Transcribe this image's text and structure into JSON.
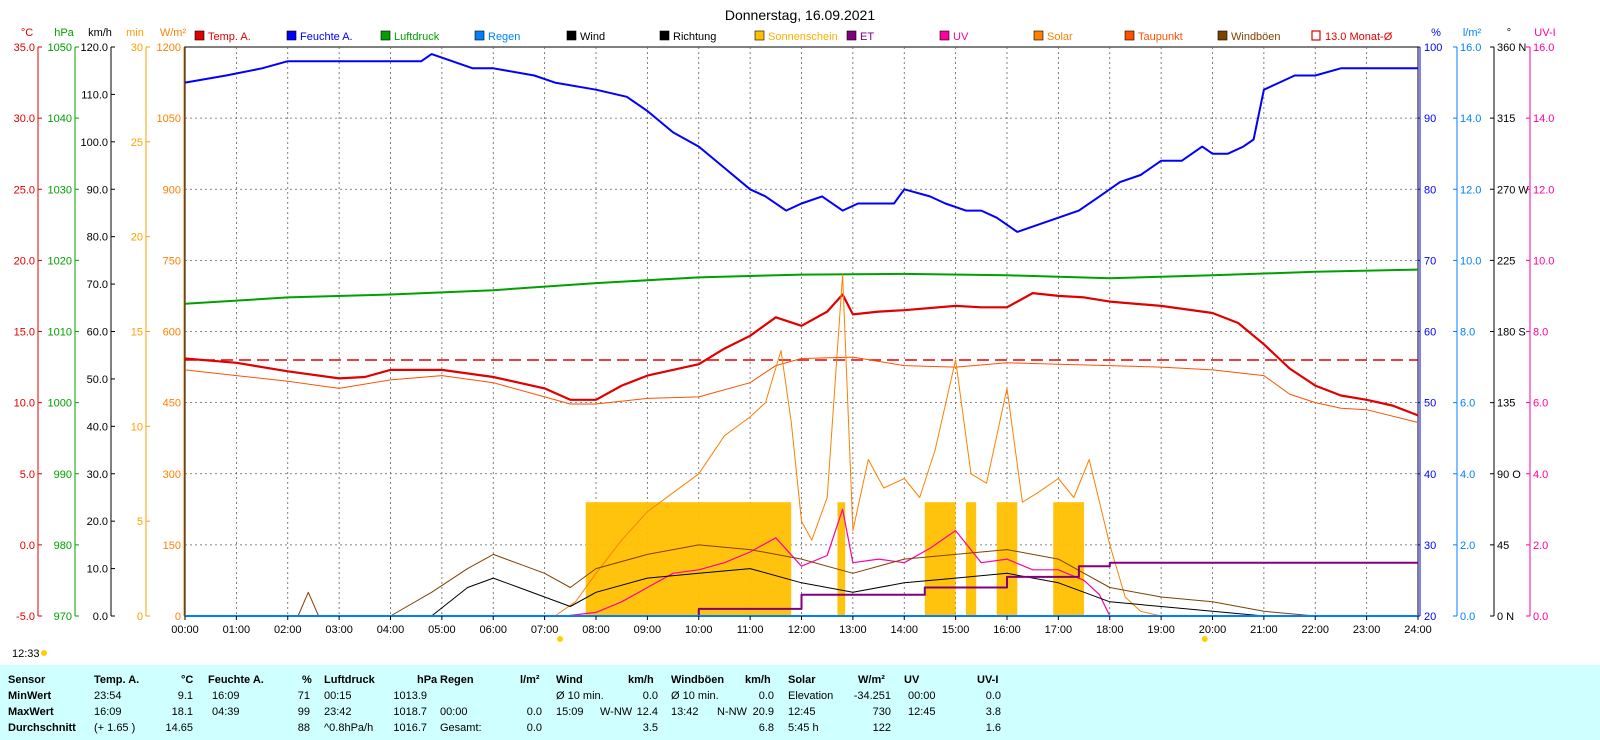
{
  "title": "Donnerstag, 16.09.2021",
  "time_marker": "12:33",
  "colors": {
    "temp": "#e00000",
    "humidity": "#0000ff",
    "pressure": "#00a000",
    "rain": "#0080ff",
    "wind": "#000000",
    "direction": "#000000",
    "sunshine": "#ffc000",
    "et": "#800080",
    "uv": "#ff00a0",
    "solar": "#ff8000",
    "dewpoint": "#ff5000",
    "gust": "#804000",
    "monthavg": "#e00000",
    "grid": "#606060"
  },
  "legend": [
    {
      "key": "temp",
      "label": "Temp. A."
    },
    {
      "key": "humidity",
      "label": "Feuchte A."
    },
    {
      "key": "pressure",
      "label": "Luftdruck"
    },
    {
      "key": "rain",
      "label": "Regen"
    },
    {
      "key": "wind",
      "label": "Wind"
    },
    {
      "key": "direction",
      "label": "Richtung"
    },
    {
      "key": "sunshine",
      "label": "Sonnenschein"
    },
    {
      "key": "et",
      "label": "ET"
    },
    {
      "key": "uv",
      "label": "UV"
    },
    {
      "key": "solar",
      "label": "Solar"
    },
    {
      "key": "dewpoint",
      "label": "Taupunkt"
    },
    {
      "key": "gust",
      "label": "Windböen"
    },
    {
      "key": "monthavg",
      "label": "13.0 Monat-Ø"
    }
  ],
  "axes": {
    "temp": {
      "unit": "°C",
      "ticks": [
        "35.0",
        "30.0",
        "25.0",
        "20.0",
        "15.0",
        "10.0",
        "5.0",
        "0.0",
        "-5.0"
      ],
      "range": [
        -5,
        35
      ]
    },
    "pressure": {
      "unit": "hPa",
      "ticks": [
        "1050",
        "1040",
        "1030",
        "1020",
        "1010",
        "1000",
        "990",
        "980",
        "970"
      ],
      "range": [
        970,
        1050
      ]
    },
    "wind": {
      "unit": "km/h",
      "ticks": [
        "120.0",
        "110.0",
        "100.0",
        "90.0",
        "80.0",
        "70.0",
        "60.0",
        "50.0",
        "40.0",
        "30.0",
        "20.0",
        "10.0",
        "0.0"
      ],
      "range": [
        0,
        120
      ]
    },
    "sunshine": {
      "unit": "min",
      "ticks": [
        "30",
        "25",
        "20",
        "15",
        "10",
        "5",
        "0"
      ],
      "range": [
        0,
        30
      ]
    },
    "solar": {
      "unit": "W/m²",
      "ticks": [
        "1200",
        "1050",
        "900",
        "750",
        "600",
        "450",
        "300",
        "150",
        "0"
      ],
      "range": [
        0,
        1200
      ]
    },
    "humidity": {
      "unit": "%",
      "ticks": [
        "100",
        "90",
        "80",
        "70",
        "60",
        "50",
        "40",
        "30",
        "20"
      ],
      "range": [
        20,
        100
      ]
    },
    "rain": {
      "unit": "l/m²",
      "ticks": [
        "16.0",
        "14.0",
        "12.0",
        "10.0",
        "8.0",
        "6.0",
        "4.0",
        "2.0",
        "0.0"
      ],
      "range": [
        0,
        16
      ]
    },
    "direction": {
      "unit": "°",
      "ticks": [
        "360 N",
        "315",
        "270 W",
        "225",
        "180 S",
        "135",
        "90 O",
        "45",
        "0 N"
      ],
      "range": [
        0,
        360
      ]
    },
    "uvi": {
      "unit": "UV-I",
      "ticks": [
        "16.0",
        "14.0",
        "12.0",
        "10.0",
        "8.0",
        "6.0",
        "4.0",
        "2.0",
        "0.0"
      ],
      "range": [
        0,
        16
      ]
    }
  },
  "x_ticks": [
    "00:00",
    "01:00",
    "02:00",
    "03:00",
    "04:00",
    "05:00",
    "06:00",
    "07:00",
    "08:00",
    "09:00",
    "10:00",
    "11:00",
    "12:00",
    "13:00",
    "14:00",
    "15:00",
    "16:00",
    "17:00",
    "18:00",
    "19:00",
    "20:00",
    "21:00",
    "22:00",
    "23:00",
    "24:00"
  ],
  "chart_data": {
    "type": "line",
    "title": "Donnerstag, 16.09.2021",
    "xlabel": "",
    "xlim": [
      0,
      24
    ],
    "month_average_temp": 13.0,
    "series": [
      {
        "name": "Temp. A.",
        "axis": "temp",
        "x": [
          0,
          1,
          2,
          3,
          3.5,
          4,
          5,
          6,
          7,
          7.5,
          8,
          8.5,
          9,
          10,
          10.5,
          11,
          11.5,
          12,
          12.5,
          12.8,
          13,
          13.5,
          14,
          15,
          15.5,
          16,
          16.5,
          17,
          17.5,
          18,
          19,
          20,
          20.5,
          21,
          21.5,
          22,
          22.5,
          23,
          23.5,
          24
        ],
        "y": [
          13.1,
          12.8,
          12.2,
          11.7,
          11.8,
          12.3,
          12.3,
          11.8,
          11.0,
          10.2,
          10.2,
          11.2,
          11.9,
          12.7,
          13.8,
          14.7,
          16.0,
          15.4,
          16.4,
          17.6,
          16.2,
          16.4,
          16.5,
          16.8,
          16.7,
          16.7,
          17.7,
          17.5,
          17.4,
          17.1,
          16.8,
          16.3,
          15.6,
          14.1,
          12.4,
          11.2,
          10.5,
          10.2,
          9.8,
          9.1
        ]
      },
      {
        "name": "Taupunkt",
        "axis": "temp",
        "x": [
          0,
          1,
          2,
          3,
          4,
          5,
          6,
          7,
          7.5,
          8,
          9,
          10,
          11,
          11.5,
          12,
          13,
          14,
          15,
          16,
          17,
          18,
          19,
          20,
          20.5,
          21,
          21.5,
          22,
          22.5,
          23,
          24
        ],
        "y": [
          12.3,
          11.9,
          11.5,
          11.0,
          11.6,
          11.9,
          11.4,
          10.4,
          9.9,
          9.9,
          10.3,
          10.4,
          11.4,
          12.6,
          13.1,
          13.2,
          12.6,
          12.5,
          12.8,
          12.7,
          12.6,
          12.5,
          12.3,
          12.1,
          11.9,
          10.6,
          10.0,
          9.6,
          9.5,
          8.6
        ]
      },
      {
        "name": "Feuchte A.",
        "axis": "humidity",
        "x": [
          0,
          0.8,
          1.5,
          2,
          3,
          4,
          4.6,
          4.8,
          5.2,
          5.6,
          6,
          6.8,
          7.2,
          8,
          8.6,
          9,
          9.5,
          10,
          10.5,
          11,
          11.3,
          11.7,
          12,
          12.4,
          12.8,
          13.1,
          13.4,
          13.8,
          14,
          14.5,
          14.8,
          15.2,
          15.5,
          15.8,
          16.2,
          16.6,
          17,
          17.4,
          17.8,
          18.2,
          18.6,
          19,
          19.4,
          19.8,
          20,
          20.3,
          20.6,
          20.8,
          21,
          21.3,
          21.6,
          22,
          22.5,
          23,
          24
        ],
        "y": [
          95,
          96,
          97,
          98,
          98,
          98,
          98,
          99,
          98,
          97,
          97,
          96,
          95,
          94,
          93,
          91,
          88,
          86,
          83,
          80,
          79,
          77,
          78,
          79,
          77,
          78,
          78,
          78,
          80,
          79,
          78,
          77,
          77,
          76,
          74,
          75,
          76,
          77,
          79,
          81,
          82,
          84,
          84,
          86,
          85,
          85,
          86,
          87,
          94,
          95,
          96,
          96,
          97,
          97,
          97
        ]
      },
      {
        "name": "Luftdruck",
        "axis": "pressure",
        "x": [
          0,
          2,
          4,
          6,
          8,
          10,
          12,
          14,
          16,
          18,
          20,
          22,
          24
        ],
        "y": [
          1013.9,
          1014.8,
          1015.2,
          1015.8,
          1016.8,
          1017.6,
          1018.0,
          1018.1,
          1017.9,
          1017.5,
          1017.9,
          1018.4,
          1018.7
        ]
      },
      {
        "name": "Solar",
        "axis": "solar",
        "x": [
          0,
          7.2,
          7.6,
          8,
          8.5,
          9,
          9.5,
          10,
          10.5,
          11,
          11.3,
          11.6,
          11.8,
          12,
          12.2,
          12.5,
          12.8,
          13,
          13.3,
          13.6,
          14,
          14.3,
          14.6,
          15,
          15.3,
          15.6,
          16,
          16.3,
          16.6,
          17,
          17.3,
          17.6,
          18,
          18.3,
          18.6,
          19,
          24
        ],
        "y": [
          0,
          0,
          30,
          90,
          160,
          220,
          260,
          300,
          380,
          420,
          450,
          560,
          410,
          200,
          160,
          250,
          720,
          180,
          330,
          270,
          290,
          250,
          350,
          540,
          300,
          280,
          480,
          240,
          260,
          290,
          250,
          330,
          150,
          40,
          10,
          0,
          0
        ]
      },
      {
        "name": "UV",
        "axis": "uvi",
        "x": [
          0,
          7.4,
          8,
          8.5,
          9,
          9.5,
          10,
          10.5,
          11,
          11.5,
          12,
          12.5,
          12.8,
          13,
          13.5,
          14,
          14.5,
          15,
          15.5,
          16,
          16.5,
          17,
          17.5,
          17.8,
          18,
          24
        ],
        "y": [
          0,
          0,
          0.1,
          0.4,
          0.8,
          1.2,
          1.3,
          1.5,
          1.8,
          2.2,
          1.4,
          1.7,
          3.0,
          1.5,
          1.6,
          1.5,
          1.9,
          2.4,
          1.5,
          1.6,
          1.3,
          1.3,
          1.0,
          0.6,
          0,
          0
        ]
      },
      {
        "name": "Wind",
        "axis": "wind",
        "x": [
          0,
          4.8,
          5.5,
          6,
          6.5,
          7,
          7.5,
          8,
          9,
          10,
          11,
          12,
          13,
          14,
          15,
          16,
          17,
          17.5,
          18,
          19,
          20,
          21,
          22,
          24
        ],
        "y": [
          0,
          0,
          6,
          8,
          6,
          4,
          2,
          5,
          8,
          9,
          10,
          7,
          5,
          7,
          8,
          9,
          7,
          5,
          3,
          2,
          1,
          0,
          0,
          0
        ]
      },
      {
        "name": "Windböen",
        "axis": "wind",
        "x": [
          0,
          2.2,
          2.4,
          2.6,
          4,
          4.8,
          5.5,
          6,
          6.5,
          7,
          7.5,
          8,
          9,
          10,
          11,
          12,
          13,
          14,
          15,
          16,
          17,
          17.5,
          18,
          19,
          20,
          21,
          22,
          24
        ],
        "y": [
          0,
          0,
          5,
          0,
          0,
          5,
          10,
          13,
          11,
          9,
          6,
          10,
          13,
          15,
          14,
          12,
          9,
          12,
          13,
          14,
          12,
          9,
          6,
          4,
          3,
          1,
          0,
          0
        ]
      },
      {
        "name": "ET",
        "axis": "rain",
        "x": [
          0,
          9.8,
          10,
          11.8,
          12,
          14.2,
          14.4,
          15.8,
          16,
          17,
          17.4,
          18,
          24
        ],
        "y": [
          0,
          0,
          0.2,
          0.2,
          0.6,
          0.6,
          0.8,
          0.8,
          1.1,
          1.1,
          1.4,
          1.5,
          1.5
        ]
      },
      {
        "name": "Regen",
        "axis": "rain",
        "x": [
          0,
          24
        ],
        "y": [
          0,
          0
        ]
      }
    ],
    "sunshine_blocks": [
      [
        7.8,
        11.8
      ],
      [
        12.7,
        12.85
      ],
      [
        14.4,
        15.0
      ],
      [
        15.2,
        15.4
      ],
      [
        15.8,
        16.2
      ],
      [
        16.9,
        17.5
      ]
    ],
    "sunshine_level_min": 6
  },
  "stats": {
    "headers": {
      "sensor": "Sensor",
      "temp": "Temp. A.",
      "temp_unit": "°C",
      "hum": "Feuchte A.",
      "hum_unit": "%",
      "press": "Luftdruck",
      "press_unit": "hPa",
      "rain": "Regen",
      "rain_unit": "l/m²",
      "wind": "Wind",
      "wind_unit": "km/h",
      "gust": "Windböen",
      "gust_unit": "km/h",
      "solar": "Solar",
      "solar_unit": "W/m²",
      "uv": "UV",
      "uv_unit": "UV-I"
    },
    "rows": [
      {
        "label": "MinWert",
        "temp_t": "23:54",
        "temp_v": "9.1",
        "hum_t": "16:09",
        "hum_v": "71",
        "press_t": "00:15",
        "press_v": "1013.9",
        "rain_t": "",
        "rain_v": "",
        "wind_t": "Ø 10 min.",
        "wind_v": "0.0",
        "gust_t": "Ø 10 min.",
        "gust_v": "0.0",
        "solar_t": "Elevation",
        "solar_v": "-34.251",
        "uv_t": "00:00",
        "uv_v": "0.0"
      },
      {
        "label": "MaxWert",
        "temp_t": "16:09",
        "temp_v": "18.1",
        "hum_t": "04:39",
        "hum_v": "99",
        "press_t": "23:42",
        "press_v": "1018.7",
        "rain_t": "00:00",
        "rain_v": "0.0",
        "wind_t": "15:09",
        "wind_d": "W-NW",
        "wind_v": "12.4",
        "gust_t": "13:42",
        "gust_d": "N-NW",
        "gust_v": "20.9",
        "solar_t": "12:45",
        "solar_v": "730",
        "uv_t": "12:45",
        "uv_v": "3.8"
      },
      {
        "label": "Durchschnitt",
        "temp_t": "(+ 1.65 )",
        "temp_v": "14.65",
        "hum_t": "",
        "hum_v": "88",
        "press_t": "^0.8hPa/h",
        "press_v": "1016.7",
        "rain_t": "Gesamt:",
        "rain_v": "0.0",
        "wind_t": "",
        "wind_v": "3.5",
        "gust_t": "",
        "gust_v": "6.8",
        "solar_t": "5:45 h",
        "solar_v": "122",
        "uv_t": "",
        "uv_v": "1.6"
      }
    ]
  }
}
